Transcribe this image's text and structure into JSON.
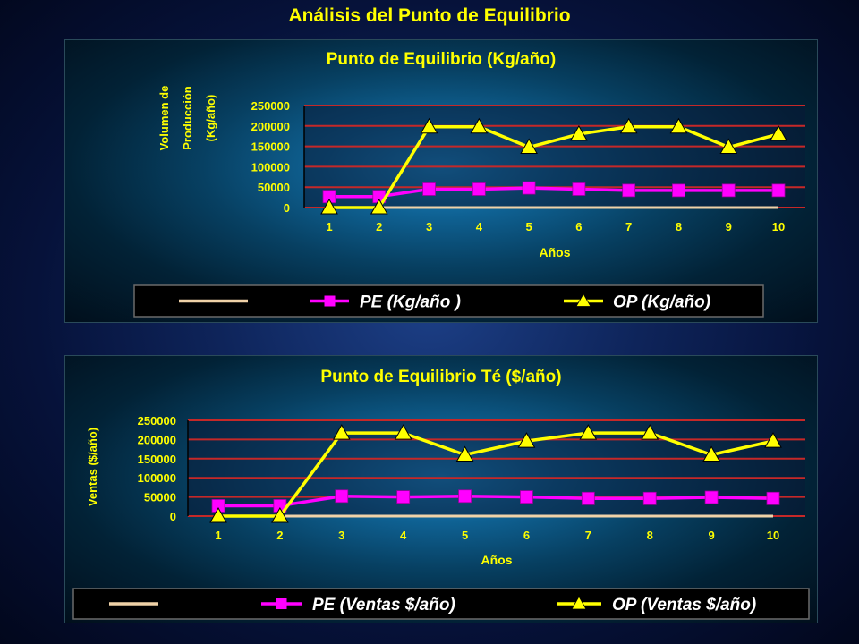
{
  "page_title": "Análisis del Punto de Equilibrio",
  "colors": {
    "title": "#ffff00",
    "gridline": "#c62828",
    "series_base": "#f0d2a8",
    "series_pe": "#ff00ff",
    "series_op": "#ffff00",
    "legend_bg": "#000000"
  },
  "chart_data": [
    {
      "type": "line",
      "title": "Punto de Equilibrio (Kg/año)",
      "xlabel": "Años",
      "ylabel": [
        "Volumen de",
        "Producción",
        "(Kg/año)"
      ],
      "categories": [
        "1",
        "2",
        "3",
        "4",
        "5",
        "6",
        "7",
        "8",
        "9",
        "10"
      ],
      "ylim": [
        0,
        250000
      ],
      "yticks": [
        "250000",
        "200000",
        "150000",
        "100000",
        "50000",
        "0"
      ],
      "grid": true,
      "legend_position": "bottom",
      "series": [
        {
          "name": "",
          "marker": "none",
          "values": [
            0,
            0,
            0,
            0,
            0,
            0,
            0,
            0,
            0,
            0
          ]
        },
        {
          "name": "PE (Kg/año )",
          "marker": "square",
          "values": [
            27000,
            27000,
            45000,
            45000,
            48000,
            45000,
            42000,
            42000,
            42000,
            42000
          ]
        },
        {
          "name": "OP (Kg/año)",
          "marker": "triangle",
          "values": [
            0,
            0,
            198000,
            198000,
            148000,
            180000,
            198000,
            198000,
            148000,
            180000
          ]
        }
      ]
    },
    {
      "type": "line",
      "title": "Punto de Equilibrio Té ($/año)",
      "xlabel": "Años",
      "ylabel": [
        "Ventas ($/año)"
      ],
      "categories": [
        "1",
        "2",
        "3",
        "4",
        "5",
        "6",
        "7",
        "8",
        "9",
        "10"
      ],
      "ylim": [
        0,
        250000
      ],
      "yticks": [
        "250000",
        "200000",
        "150000",
        "100000",
        "50000",
        "0"
      ],
      "grid": true,
      "legend_position": "bottom",
      "series": [
        {
          "name": "",
          "marker": "none",
          "values": [
            0,
            0,
            0,
            0,
            0,
            0,
            0,
            0,
            0,
            0
          ]
        },
        {
          "name": "PE (Ventas $/año)",
          "marker": "square",
          "values": [
            27000,
            27000,
            52000,
            50000,
            52000,
            50000,
            46000,
            46000,
            49000,
            46000
          ]
        },
        {
          "name": "OP (Ventas $/año)",
          "marker": "triangle",
          "values": [
            0,
            0,
            217000,
            217000,
            160000,
            196000,
            217000,
            217000,
            160000,
            196000
          ]
        }
      ]
    }
  ]
}
